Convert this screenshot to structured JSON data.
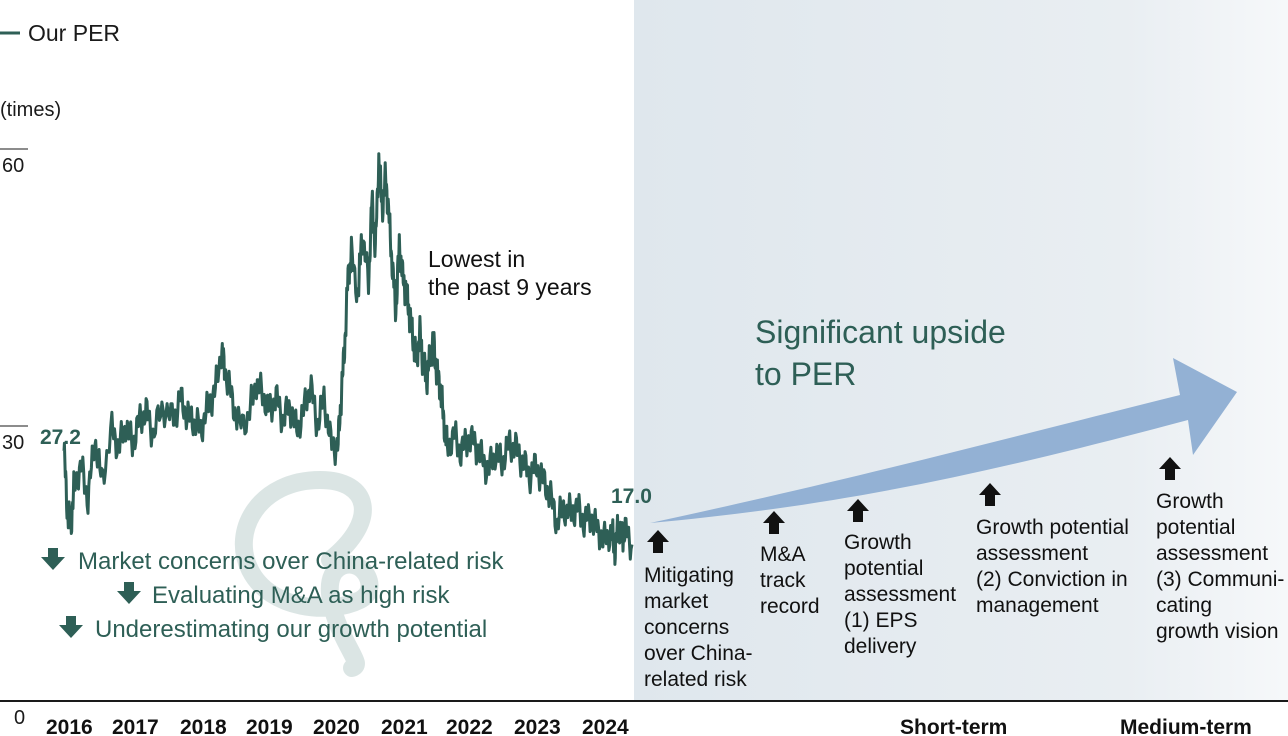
{
  "colors": {
    "line": "#2e5f56",
    "accent_text": "#2e5f56",
    "arrow_fill": "#8fb0d4",
    "panel_bg": "#e3eaef",
    "baseline": "#1a1a1a",
    "label_dark": "#111111",
    "doodle": "#d5e0df"
  },
  "legend": {
    "label": "Our PER"
  },
  "annotations": {
    "lowest": [
      "Lowest in",
      "the past 9 years"
    ],
    "start_value": "27.2",
    "end_value": "17.0",
    "upside": [
      "Significant upside",
      "to PER"
    ]
  },
  "concerns": [
    {
      "icon": "down-arrow-icon",
      "text": "Market concerns over China-related risk"
    },
    {
      "icon": "down-arrow-icon",
      "text": "Evaluating M&A as high risk"
    },
    {
      "icon": "down-arrow-icon",
      "text": "Underestimating our growth potential"
    }
  ],
  "drivers": [
    {
      "icon": "up-arrow-icon",
      "lines": [
        "Mitigating",
        "market",
        "concerns",
        "over China-",
        "related risk"
      ]
    },
    {
      "icon": "up-arrow-icon",
      "lines": [
        "M&A",
        "track",
        "record"
      ]
    },
    {
      "icon": "up-arrow-icon",
      "lines": [
        "Growth",
        "potential",
        "assessment",
        "(1) EPS",
        "delivery"
      ]
    },
    {
      "icon": "up-arrow-icon",
      "lines": [
        "Growth potential",
        "assessment",
        "(2) Conviction in",
        "management"
      ]
    },
    {
      "icon": "up-arrow-icon",
      "lines": [
        "Growth",
        "potential",
        "assessment",
        "(3) Communi-",
        "cating",
        "growth vision"
      ]
    }
  ],
  "horizon": {
    "short": "Short-term",
    "medium": "Medium-term"
  },
  "chart_data": {
    "type": "line",
    "title": "",
    "ylabel": "(times)",
    "xlabel": "",
    "ylim": [
      0,
      60
    ],
    "yticks": [
      "0",
      "30",
      "60"
    ],
    "xticks": [
      "2016",
      "2017",
      "2018",
      "2019",
      "2020",
      "2021",
      "2022",
      "2023",
      "2024"
    ],
    "series": [
      {
        "name": "Our PER",
        "x": [
          2016.0,
          2016.05,
          2016.1,
          2016.15,
          2016.25,
          2016.35,
          2016.45,
          2016.55,
          2016.7,
          2016.8,
          2016.9,
          2017.0,
          2017.1,
          2017.2,
          2017.3,
          2017.45,
          2017.6,
          2017.7,
          2017.8,
          2017.9,
          2018.0,
          2018.1,
          2018.2,
          2018.3,
          2018.35,
          2018.45,
          2018.55,
          2018.7,
          2018.8,
          2018.9,
          2019.0,
          2019.1,
          2019.2,
          2019.3,
          2019.4,
          2019.5,
          2019.6,
          2019.7,
          2019.8,
          2019.9,
          2020.0,
          2020.05,
          2020.1,
          2020.15,
          2020.2,
          2020.3,
          2020.35,
          2020.45,
          2020.5,
          2020.55,
          2020.6,
          2020.65,
          2020.7,
          2020.75,
          2020.8,
          2020.85,
          2020.9,
          2020.95,
          2021.0,
          2021.05,
          2021.1,
          2021.15,
          2021.2,
          2021.25,
          2021.3,
          2021.35,
          2021.4,
          2021.45,
          2021.5,
          2021.55,
          2021.6,
          2021.7,
          2021.8,
          2021.9,
          2022.0,
          2022.1,
          2022.2,
          2022.3,
          2022.4,
          2022.5,
          2022.6,
          2022.7,
          2022.8,
          2022.9,
          2023.0,
          2023.1,
          2023.2,
          2023.3,
          2023.4,
          2023.5,
          2023.6,
          2023.7,
          2023.8,
          2023.9,
          2024.0,
          2024.05,
          2024.1,
          2024.15,
          2024.2,
          2024.3
        ],
        "values": [
          27.2,
          20.5,
          19.0,
          23.5,
          25.5,
          22.0,
          28.5,
          24.0,
          29.5,
          27.5,
          30.0,
          28.0,
          30.5,
          31.5,
          29.0,
          32.0,
          30.5,
          33.0,
          31.0,
          30.5,
          29.5,
          32.0,
          33.5,
          38.0,
          36.0,
          33.0,
          30.0,
          31.0,
          34.5,
          33.5,
          31.5,
          33.0,
          30.5,
          32.0,
          29.5,
          31.5,
          34.5,
          30.0,
          33.0,
          28.0,
          27.5,
          33.0,
          38.5,
          46.0,
          48.5,
          44.0,
          51.0,
          45.5,
          54.5,
          49.0,
          59.0,
          53.5,
          57.0,
          52.5,
          47.0,
          42.5,
          49.5,
          46.0,
          44.5,
          42.0,
          39.5,
          37.0,
          40.0,
          36.5,
          35.0,
          37.5,
          39.0,
          35.5,
          34.0,
          30.5,
          27.5,
          29.0,
          27.0,
          28.5,
          28.0,
          26.5,
          25.0,
          27.0,
          26.0,
          28.0,
          27.5,
          26.0,
          24.5,
          25.5,
          24.0,
          22.5,
          19.5,
          21.0,
          20.5,
          21.0,
          19.5,
          20.0,
          18.5,
          17.5,
          18.5,
          16.5,
          19.0,
          17.8,
          18.5,
          17.0
        ]
      }
    ]
  }
}
